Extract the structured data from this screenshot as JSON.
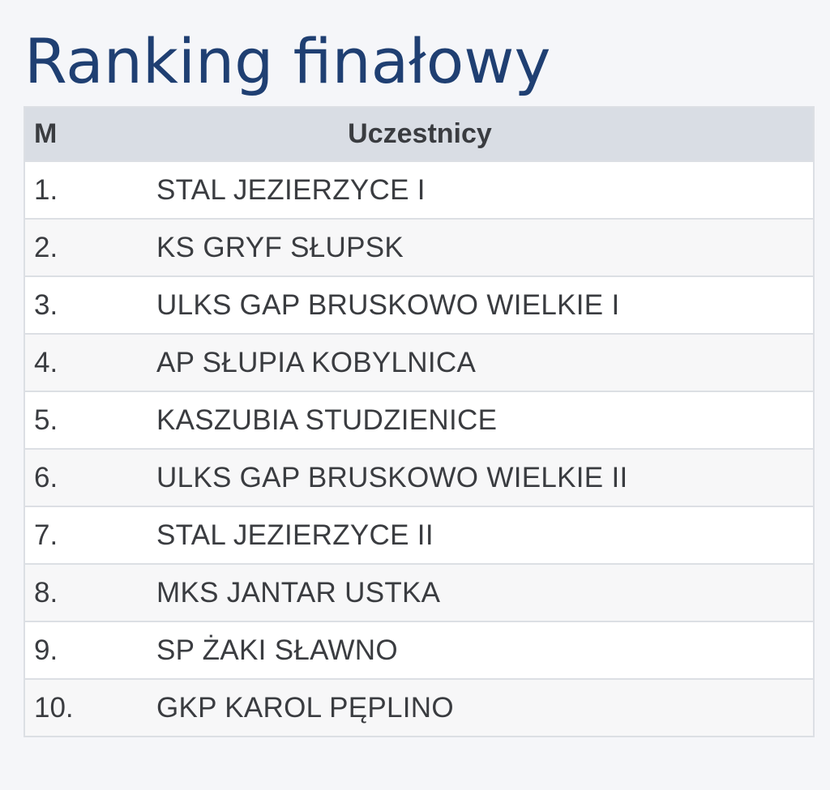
{
  "page": {
    "title": "Ranking finałowy"
  },
  "table": {
    "headers": {
      "place": "M",
      "team": "Uczestnicy"
    },
    "rows": [
      {
        "place": "1.",
        "team": "STAL JEZIERZYCE I"
      },
      {
        "place": "2.",
        "team": "KS GRYF SŁUPSK"
      },
      {
        "place": "3.",
        "team": "ULKS GAP BRUSKOWO WIELKIE I"
      },
      {
        "place": "4.",
        "team": "AP SŁUPIA KOBYLNICA"
      },
      {
        "place": "5.",
        "team": "KASZUBIA STUDZIENICE"
      },
      {
        "place": "6.",
        "team": "ULKS GAP BRUSKOWO WIELKIE II"
      },
      {
        "place": "7.",
        "team": "STAL JEZIERZYCE II"
      },
      {
        "place": "8.",
        "team": "MKS JANTAR USTKA"
      },
      {
        "place": "9.",
        "team": "SP ŻAKI SŁAWNO"
      },
      {
        "place": "10.",
        "team": "GKP KAROL PĘPLINO"
      }
    ]
  },
  "colors": {
    "title": "#1f3f72",
    "header_bg": "#d9dde4",
    "text": "#3a3c40",
    "border": "#dcdfe4",
    "page_bg": "#f5f6f9"
  }
}
